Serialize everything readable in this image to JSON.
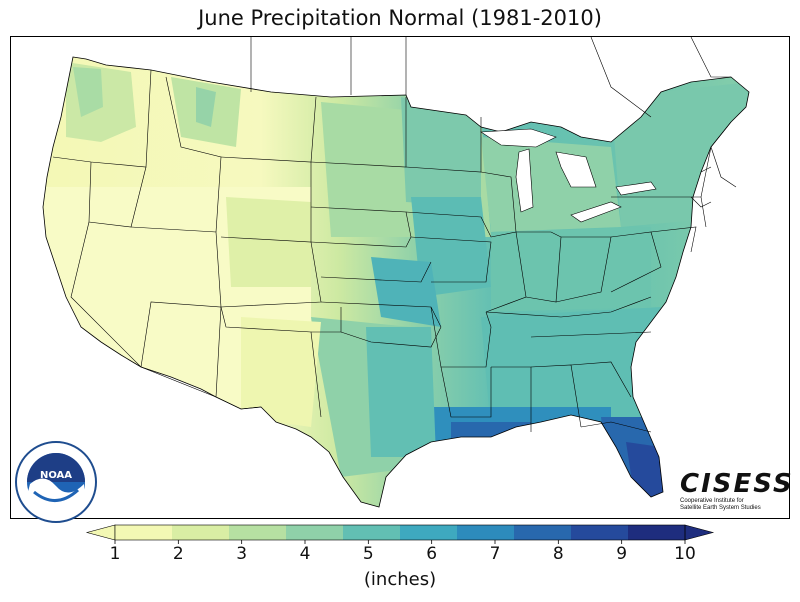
{
  "title": "June Precipitation Normal (1981-2010)",
  "colorbar": {
    "ticks": [
      "1",
      "2",
      "3",
      "4",
      "5",
      "6",
      "7",
      "8",
      "9",
      "10"
    ],
    "unit_label": "(inches)",
    "colors": [
      "#f3f8b4",
      "#d9eea4",
      "#b6e0a2",
      "#8fd1a9",
      "#62bfb3",
      "#3ea9bf",
      "#2d8bbc",
      "#2868ad",
      "#254a9c",
      "#1e2d7e"
    ],
    "extend": "both"
  },
  "logos": {
    "noaa_text": "NOAA",
    "cisess_name": "CISESS",
    "cisess_sub": [
      "Cooperative Institute for",
      "Satellite Earth System Studies"
    ]
  },
  "map": {
    "region": "Contiguous United States",
    "variable": "June precipitation normal",
    "background_color": "#ffffff"
  }
}
